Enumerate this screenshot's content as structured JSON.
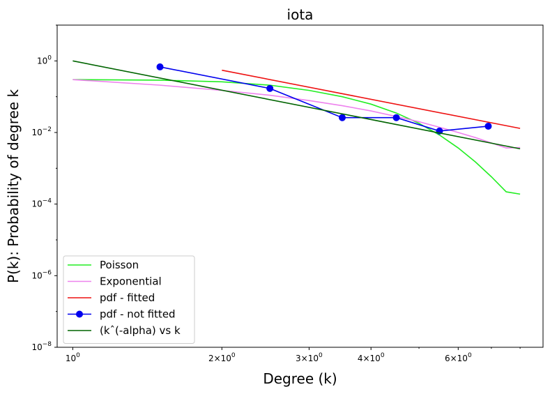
{
  "chart_data": {
    "type": "line",
    "title": "iota",
    "xlabel": "Degree (k)",
    "ylabel": "P(k): Probability of degree k",
    "xscale": "log",
    "yscale": "log",
    "xlim": [
      0.93,
      8.9
    ],
    "ylim": [
      1e-08,
      10
    ],
    "x_ticks": [
      {
        "value": 1,
        "base": "10",
        "exp": "0",
        "mult": ""
      },
      {
        "value": 2,
        "base": "10",
        "exp": "0",
        "mult": "2×"
      },
      {
        "value": 3,
        "base": "10",
        "exp": "0",
        "mult": "3×"
      },
      {
        "value": 4,
        "base": "10",
        "exp": "0",
        "mult": "4×"
      },
      {
        "value": 6,
        "base": "10",
        "exp": "0",
        "mult": "6×"
      }
    ],
    "y_ticks": [
      {
        "value": 1,
        "base": "10",
        "exp": "0"
      },
      {
        "value": 0.01,
        "base": "10",
        "exp": "−2"
      },
      {
        "value": 0.0001,
        "base": "10",
        "exp": "−4"
      },
      {
        "value": 1e-06,
        "base": "10",
        "exp": "−6"
      },
      {
        "value": 1e-08,
        "base": "10",
        "exp": "−8"
      }
    ],
    "legend_position": "lower-left",
    "series": [
      {
        "name": "Poisson",
        "color": "#22ee22",
        "marker": false,
        "x": [
          1.0,
          1.5,
          2.0,
          2.5,
          3.0,
          3.5,
          4.0,
          4.5,
          5.0,
          5.5,
          6.0,
          6.5,
          7.0,
          7.5,
          8.0
        ],
        "y": [
          0.3,
          0.29,
          0.26,
          0.21,
          0.15,
          0.1,
          0.062,
          0.035,
          0.018,
          0.0085,
          0.0037,
          0.0015,
          0.00058,
          0.00022,
          0.00019
        ]
      },
      {
        "name": "Exponential",
        "color": "#ee82ee",
        "marker": false,
        "x": [
          1.0,
          1.5,
          2.0,
          2.5,
          3.0,
          3.5,
          4.0,
          4.5,
          5.0,
          5.5,
          6.0,
          6.5,
          7.0,
          7.5,
          8.0
        ],
        "y": [
          0.3,
          0.21,
          0.15,
          0.11,
          0.078,
          0.056,
          0.04,
          0.028,
          0.02,
          0.014,
          0.01,
          0.0072,
          0.0051,
          0.0037,
          0.0038
        ]
      },
      {
        "name": "pdf - fitted",
        "color": "#ee1111",
        "marker": false,
        "x": [
          2.0,
          8.0
        ],
        "y": [
          0.55,
          0.013
        ]
      },
      {
        "name": "pdf - not fitted",
        "color": "#0000ee",
        "marker": true,
        "x": [
          1.5,
          2.5,
          3.5,
          4.5,
          5.5,
          6.9
        ],
        "y": [
          0.68,
          0.17,
          0.026,
          0.026,
          0.011,
          0.015
        ]
      },
      {
        "name": "(kˆ(-alpha) vs k",
        "color": "#006400",
        "marker": false,
        "x": [
          1.0,
          8.0
        ],
        "y": [
          1.0,
          0.0035
        ]
      }
    ]
  }
}
